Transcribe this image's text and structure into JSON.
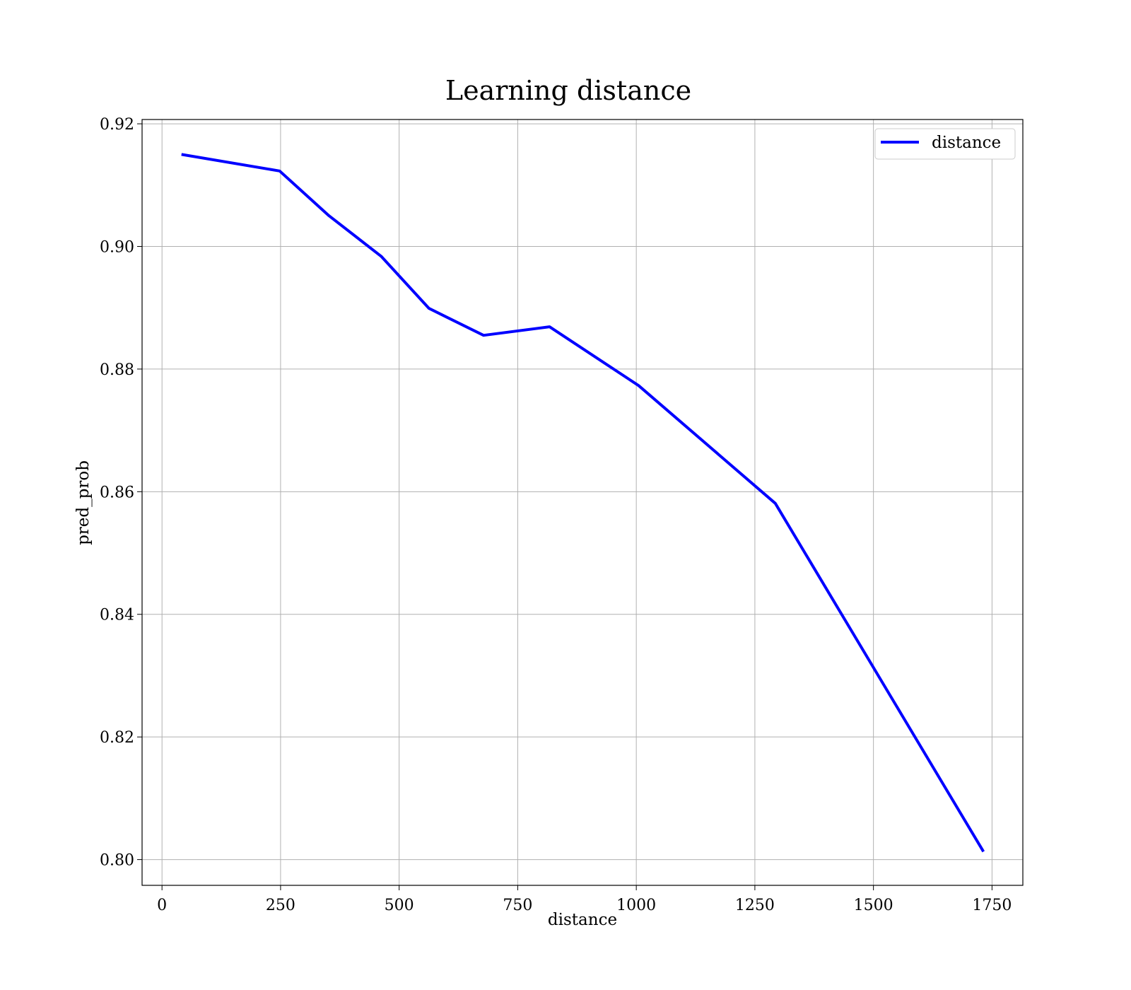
{
  "chart_data": {
    "type": "line",
    "title": "Learning distance",
    "xlabel": "distance",
    "ylabel": "pred_prob",
    "xlim": [
      -42,
      1815
    ],
    "ylim": [
      0.7958,
      0.9207
    ],
    "xticks": [
      0,
      250,
      500,
      750,
      1000,
      1250,
      1500,
      1750
    ],
    "xtick_labels": [
      "0",
      "250",
      "500",
      "750",
      "1000",
      "1250",
      "1500",
      "1750"
    ],
    "yticks": [
      0.8,
      0.82,
      0.84,
      0.86,
      0.88,
      0.9,
      0.92
    ],
    "ytick_labels": [
      "0.80",
      "0.82",
      "0.84",
      "0.86",
      "0.88",
      "0.90",
      "0.92"
    ],
    "grid": true,
    "legend_position": "upper right",
    "series": [
      {
        "name": "distance",
        "color": "#0000ff",
        "x": [
          41,
          248,
          352,
          462,
          563,
          678,
          817,
          1005,
          1293,
          1732
        ],
        "y": [
          0.915,
          0.9123,
          0.905,
          0.8984,
          0.8899,
          0.8855,
          0.8869,
          0.8773,
          0.8581,
          0.8013
        ]
      }
    ]
  }
}
